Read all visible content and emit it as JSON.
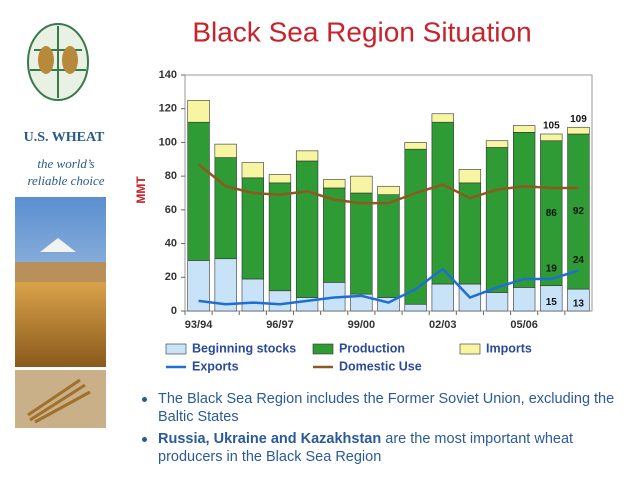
{
  "brand": {
    "name": "U.S. WHEAT",
    "tagline": "the world’s reliable choice"
  },
  "chart_data": {
    "type": "bar",
    "stacked": true,
    "title": "Black Sea Region Situation",
    "y_label": "MMT",
    "categories": [
      "93/94",
      null,
      null,
      "96/97",
      null,
      null,
      "99/00",
      null,
      null,
      "02/03",
      null,
      null,
      "05/06",
      null,
      null
    ],
    "ylim": [
      0,
      140
    ],
    "yticks": [
      0,
      20,
      40,
      60,
      80,
      100,
      120,
      140
    ],
    "grid": false,
    "series": [
      {
        "name": "Beginning stocks",
        "type": "bar",
        "color": "#c8e3f8",
        "values": [
          30,
          31,
          19,
          12,
          8,
          17,
          10,
          8,
          4,
          16,
          16,
          11,
          14,
          15,
          13
        ],
        "value_labels": [
          null,
          null,
          null,
          null,
          null,
          null,
          null,
          null,
          null,
          null,
          null,
          null,
          null,
          "15",
          "13"
        ]
      },
      {
        "name": "Production",
        "type": "bar",
        "color": "#2f9b35",
        "values": [
          82,
          60,
          60,
          64,
          81,
          56,
          60,
          61,
          92,
          96,
          60,
          86,
          92,
          86,
          92
        ],
        "value_labels": [
          null,
          null,
          null,
          null,
          null,
          null,
          null,
          null,
          null,
          null,
          null,
          null,
          null,
          "86",
          "92"
        ]
      },
      {
        "name": "Imports",
        "type": "bar",
        "color": "#f8f5a2",
        "values": [
          13,
          8,
          9,
          5,
          6,
          5,
          10,
          5,
          4,
          5,
          8,
          4,
          4,
          4,
          4
        ]
      },
      {
        "name": "Exports",
        "type": "line",
        "color": "#1f6fd2",
        "values": [
          6,
          4,
          5,
          4,
          6,
          8,
          9,
          5,
          13,
          25,
          8,
          14,
          19,
          19,
          24
        ],
        "value_labels": [
          null,
          null,
          null,
          null,
          null,
          null,
          null,
          null,
          null,
          null,
          null,
          null,
          null,
          "19",
          "24"
        ]
      },
      {
        "name": "Domestic Use",
        "type": "line",
        "color": "#8b5a1e",
        "values": [
          87,
          74,
          70,
          69,
          71,
          66,
          64,
          64,
          70,
          75,
          67,
          72,
          74,
          73,
          73
        ]
      }
    ],
    "total_labels": [
      null,
      null,
      null,
      null,
      null,
      null,
      null,
      null,
      null,
      null,
      null,
      null,
      null,
      "105",
      "109"
    ]
  },
  "bullets": [
    {
      "text": "The Black Sea Region includes the Former Soviet Union, excluding the Baltic States"
    },
    {
      "bold": "Russia, Ukraine and Kazakhstan",
      "text": " are the most important wheat producers in the Black Sea Region"
    }
  ]
}
